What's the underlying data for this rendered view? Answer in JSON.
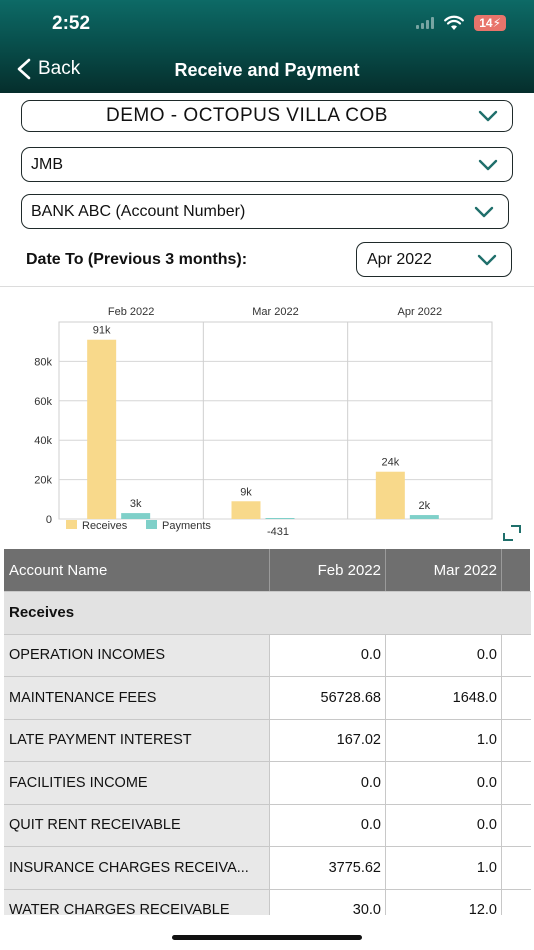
{
  "status_bar": {
    "time": "2:52",
    "battery": "14"
  },
  "nav": {
    "back_label": "Back",
    "title": "Receive and Payment"
  },
  "selectors": {
    "property": "DEMO - OCTOPUS VILLA COB",
    "entity": "JMB",
    "account": "BANK ABC (Account Number)",
    "date_label": "Date To (Previous 3 months):",
    "month": "Apr 2022"
  },
  "chart_data": {
    "type": "bar",
    "categories": [
      "Feb 2022",
      "Mar 2022",
      "Apr 2022"
    ],
    "series": [
      {
        "name": "Receives",
        "values": [
          91000,
          9000,
          24000
        ],
        "labels": [
          "91k",
          "9k",
          "24k"
        ],
        "color": "#f8d98b"
      },
      {
        "name": "Payments",
        "values": [
          3000,
          -431,
          2000
        ],
        "labels": [
          "3k",
          "-431",
          "2k"
        ],
        "color": "#7fd0c9"
      }
    ],
    "yticks": [
      0,
      20000,
      40000,
      60000,
      80000
    ],
    "ytick_labels": [
      "0",
      "20k",
      "40k",
      "60k",
      "80k"
    ],
    "ylim": [
      0,
      100000
    ],
    "grid": true,
    "legend": "bottom-left"
  },
  "table": {
    "headers": [
      "Account Name",
      "Feb 2022",
      "Mar 2022"
    ],
    "section": "Receives",
    "rows": [
      [
        "OPERATION INCOMES",
        "0.0",
        "0.0"
      ],
      [
        "MAINTENANCE FEES",
        "56728.68",
        "1648.0"
      ],
      [
        "LATE PAYMENT INTEREST",
        "167.02",
        "1.0"
      ],
      [
        "FACILITIES INCOME",
        "0.0",
        "0.0"
      ],
      [
        "QUIT RENT RECEIVABLE",
        "0.0",
        "0.0"
      ],
      [
        "INSURANCE CHARGES RECEIVA...",
        "3775.62",
        "1.0"
      ],
      [
        "WATER CHARGES RECEIVABLE",
        "30.0",
        "12.0"
      ]
    ]
  }
}
